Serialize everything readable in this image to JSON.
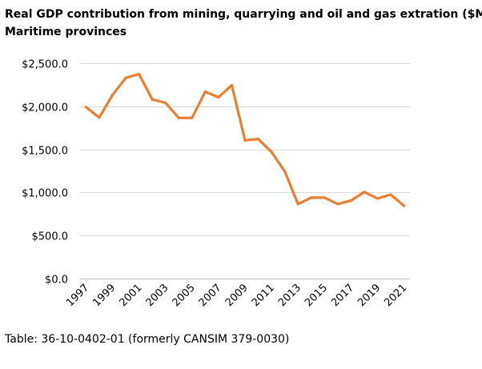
{
  "chart_data": {
    "type": "line",
    "title": "Real GDP contribution from mining, quarrying and oil and gas extration ($M)",
    "subtitle": "Maritime provinces",
    "xlabel": "",
    "ylabel": "",
    "ylim": [
      0,
      2500
    ],
    "yticks": [
      0,
      500,
      1000,
      1500,
      2000,
      2500
    ],
    "ytick_labels": [
      "$0.0",
      "$500.0",
      "$1,000.0",
      "$1,500.0",
      "$2,000.0",
      "$2,500.0"
    ],
    "xtick_labels": [
      "1997",
      "1999",
      "2001",
      "2003",
      "2005",
      "2007",
      "2009",
      "2011",
      "2013",
      "2015",
      "2017",
      "2019",
      "2021"
    ],
    "grid": true,
    "legend": "none",
    "series": [
      {
        "color": "#ED7D31",
        "x": [
          1997,
          1998,
          1999,
          2000,
          2001,
          2002,
          2003,
          2004,
          2005,
          2006,
          2007,
          2008,
          2009,
          2010,
          2011,
          2012,
          2013,
          2014,
          2015,
          2016,
          2017,
          2018,
          2019,
          2020,
          2021
        ],
        "values": [
          1990,
          1870,
          2130,
          2330,
          2375,
          2080,
          2040,
          1865,
          1865,
          2170,
          2105,
          2245,
          1605,
          1620,
          1470,
          1245,
          865,
          940,
          940,
          865,
          905,
          1005,
          930,
          975,
          845
        ]
      }
    ]
  },
  "source": "Table: 36-10-0402-01 (formerly CANSIM 379-0030)"
}
